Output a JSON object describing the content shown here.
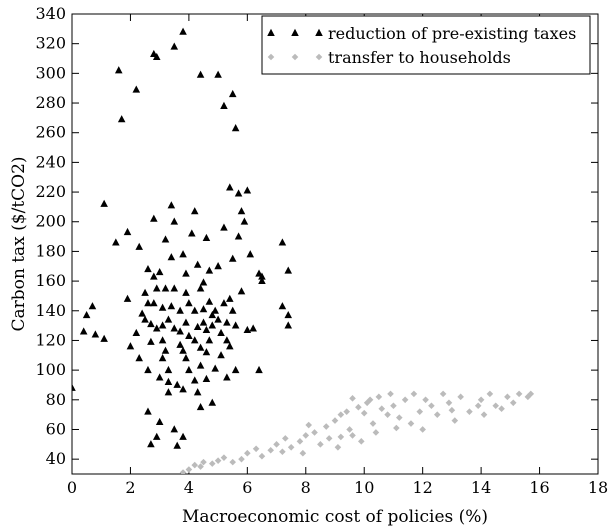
{
  "chart_data": {
    "type": "scatter",
    "title": "",
    "xlabel": "Macroeconomic cost of policies (%)",
    "ylabel": "Carbon tax ($/tCO2)",
    "xlim": [
      0,
      18
    ],
    "ylim": [
      30,
      340
    ],
    "xticks": [
      0,
      2,
      4,
      6,
      8,
      10,
      12,
      14,
      16,
      18
    ],
    "yticks": [
      40,
      60,
      80,
      100,
      120,
      140,
      160,
      180,
      200,
      220,
      240,
      260,
      280,
      300,
      320,
      340
    ],
    "grid": false,
    "legend_position": "top-right",
    "series": [
      {
        "name": "reduction of pre-existing taxes",
        "marker": "triangle",
        "color": "#000000",
        "points": [
          [
            0.0,
            88
          ],
          [
            0.4,
            126
          ],
          [
            0.5,
            137
          ],
          [
            0.7,
            143
          ],
          [
            0.8,
            124
          ],
          [
            1.1,
            121
          ],
          [
            1.1,
            212
          ],
          [
            1.5,
            186
          ],
          [
            1.6,
            302
          ],
          [
            1.7,
            269
          ],
          [
            1.9,
            148
          ],
          [
            1.9,
            193
          ],
          [
            2.0,
            116
          ],
          [
            2.2,
            125
          ],
          [
            2.2,
            289
          ],
          [
            2.3,
            183
          ],
          [
            2.3,
            108
          ],
          [
            2.4,
            138
          ],
          [
            2.5,
            134
          ],
          [
            2.5,
            152
          ],
          [
            2.6,
            145
          ],
          [
            2.6,
            168
          ],
          [
            2.6,
            100
          ],
          [
            2.6,
            72
          ],
          [
            2.7,
            50
          ],
          [
            2.7,
            131
          ],
          [
            2.7,
            119
          ],
          [
            2.8,
            313
          ],
          [
            2.8,
            202
          ],
          [
            2.8,
            163
          ],
          [
            2.8,
            145
          ],
          [
            2.9,
            311
          ],
          [
            2.9,
            155
          ],
          [
            2.9,
            128
          ],
          [
            2.9,
            55
          ],
          [
            3.0,
            166
          ],
          [
            3.0,
            95
          ],
          [
            3.0,
            65
          ],
          [
            3.1,
            142
          ],
          [
            3.1,
            120
          ],
          [
            3.1,
            108
          ],
          [
            3.1,
            130
          ],
          [
            3.2,
            113
          ],
          [
            3.2,
            188
          ],
          [
            3.2,
            155
          ],
          [
            3.3,
            134
          ],
          [
            3.3,
            100
          ],
          [
            3.3,
            92
          ],
          [
            3.3,
            85
          ],
          [
            3.4,
            211
          ],
          [
            3.4,
            176
          ],
          [
            3.4,
            143
          ],
          [
            3.5,
            318
          ],
          [
            3.5,
            200
          ],
          [
            3.5,
            155
          ],
          [
            3.5,
            128
          ],
          [
            3.5,
            60
          ],
          [
            3.6,
            90
          ],
          [
            3.6,
            49
          ],
          [
            3.7,
            140
          ],
          [
            3.7,
            126
          ],
          [
            3.7,
            117
          ],
          [
            3.8,
            328
          ],
          [
            3.8,
            178
          ],
          [
            3.8,
            113
          ],
          [
            3.8,
            87
          ],
          [
            3.8,
            55
          ],
          [
            3.9,
            165
          ],
          [
            3.9,
            152
          ],
          [
            3.9,
            132
          ],
          [
            3.9,
            108
          ],
          [
            4.0,
            145
          ],
          [
            4.0,
            123
          ],
          [
            4.0,
            100
          ],
          [
            4.1,
            192
          ],
          [
            4.2,
            207
          ],
          [
            4.2,
            140
          ],
          [
            4.2,
            120
          ],
          [
            4.2,
            93
          ],
          [
            4.3,
            171
          ],
          [
            4.3,
            129
          ],
          [
            4.3,
            85
          ],
          [
            4.4,
            299
          ],
          [
            4.4,
            155
          ],
          [
            4.4,
            115
          ],
          [
            4.4,
            103
          ],
          [
            4.4,
            75
          ],
          [
            4.5,
            159
          ],
          [
            4.5,
            141
          ],
          [
            4.5,
            132
          ],
          [
            4.6,
            189
          ],
          [
            4.6,
            127
          ],
          [
            4.6,
            112
          ],
          [
            4.6,
            94
          ],
          [
            4.7,
            167
          ],
          [
            4.7,
            146
          ],
          [
            4.7,
            120
          ],
          [
            4.8,
            137
          ],
          [
            4.8,
            130
          ],
          [
            4.8,
            78
          ],
          [
            4.9,
            140
          ],
          [
            4.9,
            101
          ],
          [
            5.0,
            170
          ],
          [
            5.0,
            134
          ],
          [
            5.0,
            299
          ],
          [
            5.1,
            125
          ],
          [
            5.1,
            110
          ],
          [
            5.2,
            278
          ],
          [
            5.2,
            196
          ],
          [
            5.2,
            145
          ],
          [
            5.3,
            132
          ],
          [
            5.3,
            120
          ],
          [
            5.3,
            95
          ],
          [
            5.4,
            223
          ],
          [
            5.4,
            148
          ],
          [
            5.4,
            116
          ],
          [
            5.5,
            286
          ],
          [
            5.5,
            175
          ],
          [
            5.5,
            140
          ],
          [
            5.6,
            263
          ],
          [
            5.6,
            130
          ],
          [
            5.6,
            100
          ],
          [
            5.7,
            219
          ],
          [
            5.7,
            190
          ],
          [
            5.8,
            207
          ],
          [
            5.8,
            153
          ],
          [
            5.9,
            200
          ],
          [
            6.0,
            221
          ],
          [
            6.0,
            127
          ],
          [
            6.1,
            178
          ],
          [
            6.2,
            128
          ],
          [
            6.4,
            100
          ],
          [
            6.4,
            165
          ],
          [
            6.5,
            163
          ],
          [
            6.5,
            160
          ],
          [
            7.2,
            186
          ],
          [
            7.2,
            143
          ],
          [
            7.4,
            167
          ],
          [
            7.4,
            137
          ],
          [
            7.4,
            130
          ]
        ]
      },
      {
        "name": "transfer to households",
        "marker": "diamond",
        "color": "#bbbbbb",
        "points": [
          [
            3.8,
            31
          ],
          [
            4.0,
            33
          ],
          [
            4.2,
            36
          ],
          [
            4.4,
            35
          ],
          [
            4.5,
            38
          ],
          [
            4.8,
            37
          ],
          [
            5.0,
            39
          ],
          [
            5.2,
            41
          ],
          [
            5.5,
            38
          ],
          [
            5.8,
            40
          ],
          [
            6.0,
            44
          ],
          [
            6.3,
            47
          ],
          [
            6.5,
            42
          ],
          [
            6.8,
            46
          ],
          [
            7.0,
            50
          ],
          [
            7.2,
            45
          ],
          [
            7.5,
            48
          ],
          [
            7.8,
            52
          ],
          [
            7.9,
            44
          ],
          [
            8.0,
            56
          ],
          [
            8.3,
            58
          ],
          [
            8.5,
            50
          ],
          [
            8.7,
            62
          ],
          [
            8.8,
            54
          ],
          [
            9.0,
            66
          ],
          [
            9.1,
            48
          ],
          [
            9.2,
            70
          ],
          [
            9.4,
            72
          ],
          [
            9.5,
            60
          ],
          [
            9.6,
            56
          ],
          [
            9.8,
            75
          ],
          [
            9.9,
            52
          ],
          [
            10.1,
            78
          ],
          [
            10.2,
            80
          ],
          [
            10.3,
            64
          ],
          [
            10.5,
            82
          ],
          [
            10.6,
            74
          ],
          [
            10.8,
            70
          ],
          [
            10.9,
            84
          ],
          [
            11.0,
            76
          ],
          [
            11.2,
            68
          ],
          [
            11.4,
            80
          ],
          [
            11.6,
            64
          ],
          [
            11.7,
            84
          ],
          [
            11.9,
            72
          ],
          [
            12.1,
            80
          ],
          [
            12.3,
            76
          ],
          [
            12.5,
            70
          ],
          [
            12.7,
            84
          ],
          [
            12.9,
            78
          ],
          [
            13.1,
            66
          ],
          [
            13.3,
            82
          ],
          [
            13.6,
            72
          ],
          [
            13.9,
            76
          ],
          [
            14.1,
            70
          ],
          [
            14.3,
            84
          ],
          [
            14.5,
            76
          ],
          [
            14.7,
            74
          ],
          [
            14.9,
            82
          ],
          [
            15.1,
            78
          ],
          [
            15.3,
            84
          ],
          [
            15.6,
            82
          ],
          [
            15.7,
            84
          ],
          [
            9.6,
            81
          ],
          [
            10.0,
            71
          ],
          [
            10.4,
            58
          ],
          [
            11.1,
            61
          ],
          [
            12.0,
            60
          ],
          [
            13.0,
            73
          ],
          [
            14.0,
            80
          ],
          [
            8.1,
            63
          ],
          [
            9.2,
            55
          ],
          [
            7.3,
            54
          ]
        ]
      }
    ]
  }
}
